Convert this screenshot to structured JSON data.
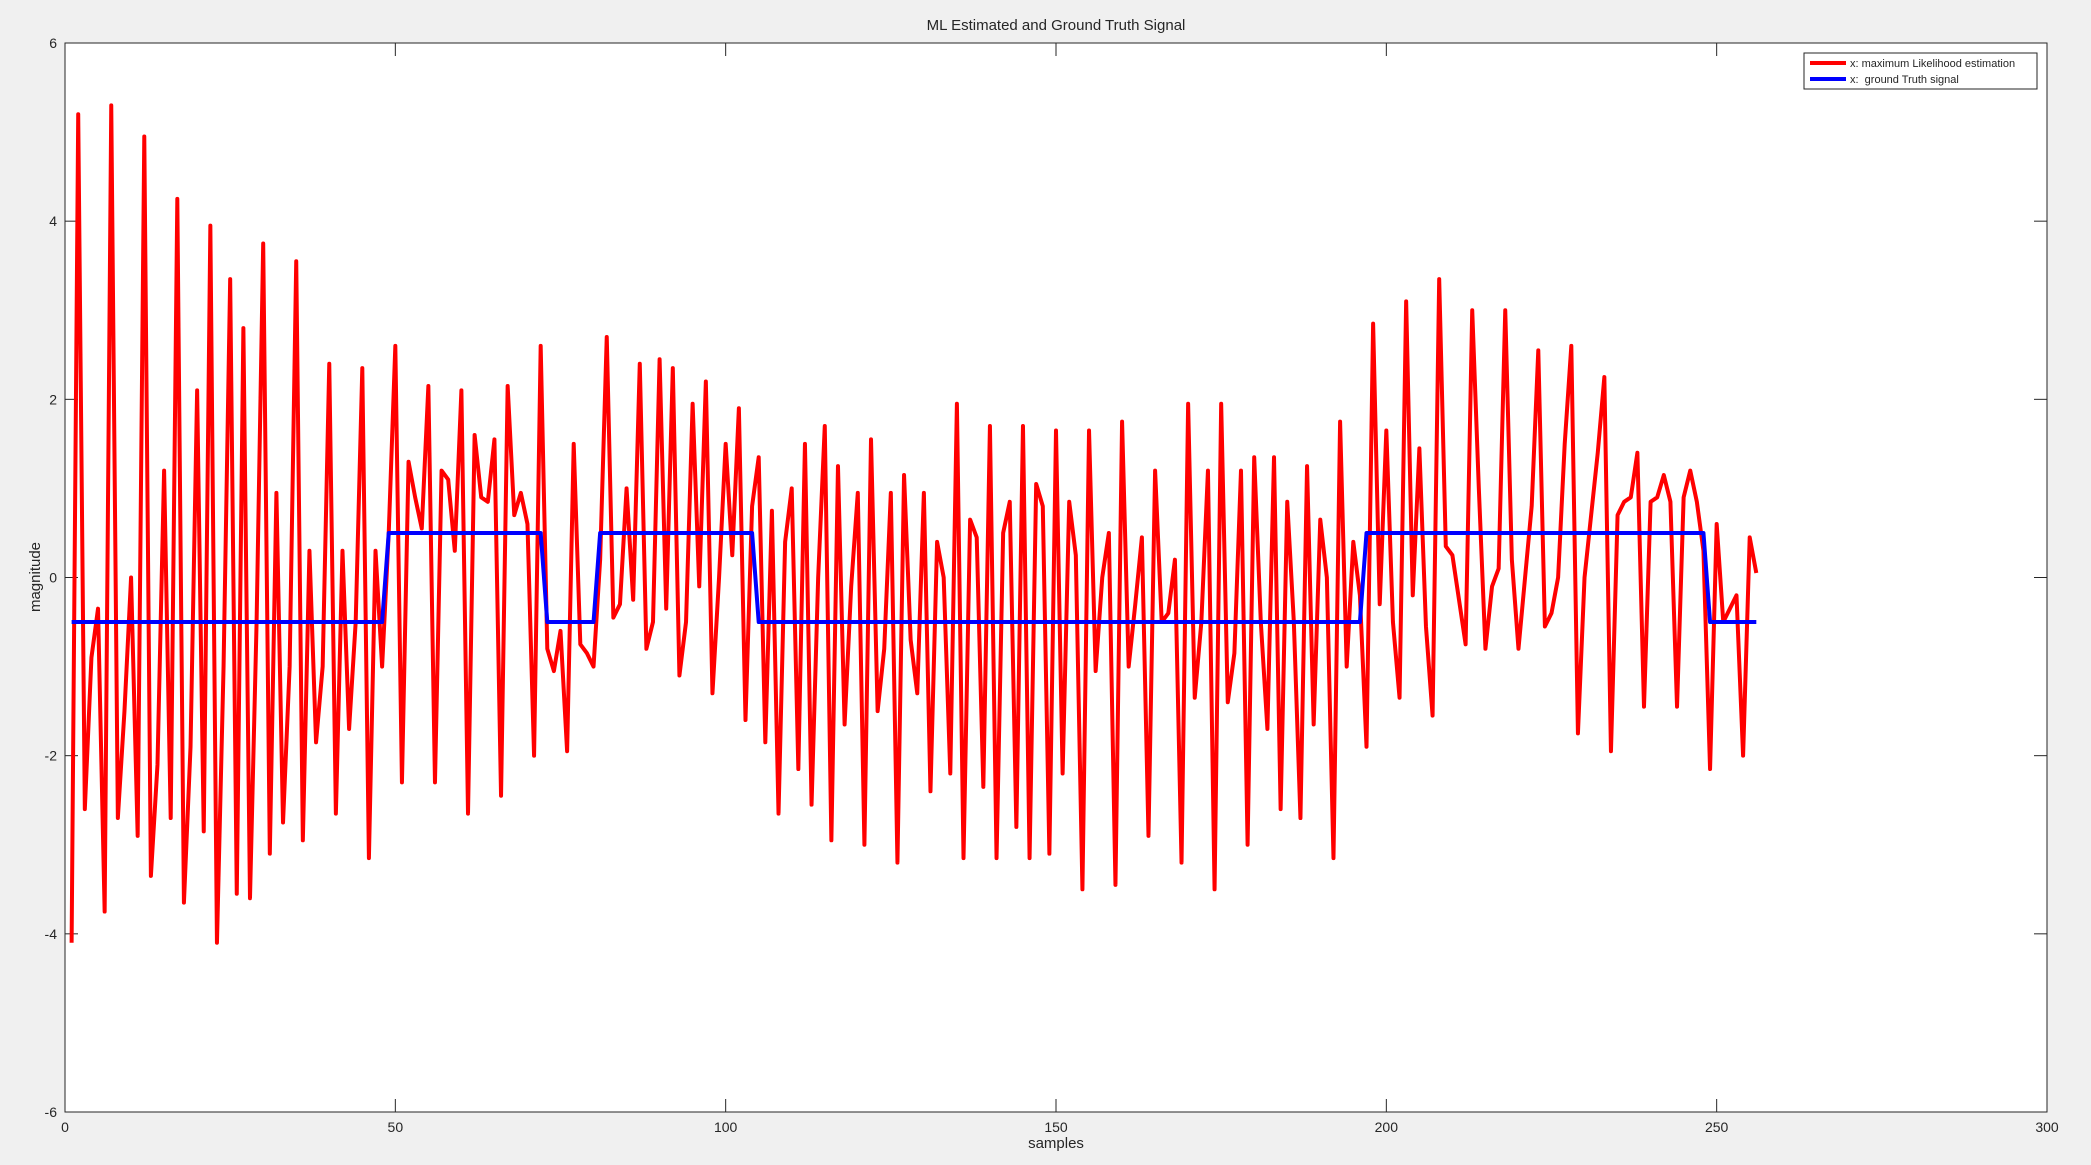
{
  "chart_data": {
    "type": "line",
    "title": "ML Estimated and Ground Truth Signal",
    "x_label": "samples",
    "y_label": "magnitude",
    "x": [
      1,
      2,
      3,
      4,
      5,
      6,
      7,
      8,
      9,
      10,
      11,
      12,
      13,
      14,
      15,
      16,
      17,
      18,
      19,
      20,
      21,
      22,
      23,
      24,
      25,
      26,
      27,
      28,
      29,
      30,
      31,
      32,
      33,
      34,
      35,
      36,
      37,
      38,
      39,
      40,
      41,
      42,
      43,
      44,
      45,
      46,
      47,
      48,
      49,
      50,
      51,
      52,
      53,
      54,
      55,
      56,
      57,
      58,
      59,
      60,
      61,
      62,
      63,
      64,
      65,
      66,
      67,
      68,
      69,
      70,
      71,
      72,
      73,
      74,
      75,
      76,
      77,
      78,
      79,
      80,
      81,
      82,
      83,
      84,
      85,
      86,
      87,
      88,
      89,
      90,
      91,
      92,
      93,
      94,
      95,
      96,
      97,
      98,
      99,
      100,
      101,
      102,
      103,
      104,
      105,
      106,
      107,
      108,
      109,
      110,
      111,
      112,
      113,
      114,
      115,
      116,
      117,
      118,
      119,
      120,
      121,
      122,
      123,
      124,
      125,
      126,
      127,
      128,
      129,
      130,
      131,
      132,
      133,
      134,
      135,
      136,
      137,
      138,
      139,
      140,
      141,
      142,
      143,
      144,
      145,
      146,
      147,
      148,
      149,
      150,
      151,
      152,
      153,
      154,
      155,
      156,
      157,
      158,
      159,
      160,
      161,
      162,
      163,
      164,
      165,
      166,
      167,
      168,
      169,
      170,
      171,
      172,
      173,
      174,
      175,
      176,
      177,
      178,
      179,
      180,
      181,
      182,
      183,
      184,
      185,
      186,
      187,
      188,
      189,
      190,
      191,
      192,
      193,
      194,
      195,
      196,
      197,
      198,
      199,
      200,
      201,
      202,
      203,
      204,
      205,
      206,
      207,
      208,
      209,
      210,
      211,
      212,
      213,
      214,
      215,
      216,
      217,
      218,
      219,
      220,
      221,
      222,
      223,
      224,
      225,
      226,
      227,
      228,
      229,
      230,
      231,
      232,
      233,
      234,
      235,
      236,
      237,
      238,
      239,
      240,
      241,
      242,
      243,
      244,
      245,
      246,
      247,
      248,
      249,
      250,
      251,
      252,
      253,
      254,
      255,
      256
    ],
    "series": [
      {
        "name": "x: maximum Likelihood estimation",
        "color": "#ff0000",
        "values": [
          -4.1,
          5.2,
          -2.6,
          -0.9,
          -0.35,
          -3.75,
          5.3,
          -2.7,
          -1.5,
          0,
          -2.9,
          4.95,
          -3.35,
          -2.1,
          1.2,
          -2.7,
          4.25,
          -3.65,
          -1.9,
          2.1,
          -2.85,
          3.95,
          -4.1,
          -1,
          3.35,
          -3.55,
          2.8,
          -3.6,
          -0.5,
          3.75,
          -3.1,
          0.95,
          -2.75,
          -1,
          3.55,
          -2.95,
          0.3,
          -1.85,
          -1,
          2.4,
          -2.65,
          0.3,
          -1.7,
          -0.5,
          2.35,
          -3.15,
          0.3,
          -1,
          0.5,
          2.6,
          -2.3,
          1.3,
          0.9,
          0.55,
          2.15,
          -2.3,
          1.2,
          1.1,
          0.3,
          2.1,
          -2.65,
          1.6,
          0.9,
          0.85,
          1.55,
          -2.45,
          2.15,
          0.7,
          0.95,
          0.6,
          -2,
          2.6,
          -0.8,
          -1.05,
          -0.6,
          -1.95,
          1.5,
          -0.75,
          -0.85,
          -1,
          0.2,
          2.7,
          -0.45,
          -0.3,
          1,
          -0.25,
          2.4,
          -0.8,
          -0.5,
          2.45,
          -0.35,
          2.35,
          -1.1,
          -0.5,
          1.95,
          -0.1,
          2.2,
          -1.3,
          0,
          1.5,
          0.25,
          1.9,
          -1.6,
          0.8,
          1.35,
          -1.85,
          0.75,
          -2.65,
          0.4,
          1,
          -2.15,
          1.5,
          -2.55,
          0,
          1.7,
          -2.95,
          1.25,
          -1.65,
          -0.1,
          0.95,
          -3,
          1.55,
          -1.5,
          -0.8,
          0.95,
          -3.2,
          1.15,
          -0.7,
          -1.3,
          0.95,
          -2.4,
          0.4,
          0,
          -2.2,
          1.95,
          -3.15,
          0.65,
          0.45,
          -2.35,
          1.7,
          -3.15,
          0.5,
          0.85,
          -2.8,
          1.7,
          -3.15,
          1.05,
          0.8,
          -3.1,
          1.65,
          -2.2,
          0.85,
          0.25,
          -3.5,
          1.65,
          -1.05,
          0,
          0.5,
          -3.45,
          1.75,
          -1,
          -0.3,
          0.45,
          -2.9,
          1.2,
          -0.5,
          -0.4,
          0.2,
          -3.2,
          1.95,
          -1.35,
          -0.5,
          1.2,
          -3.5,
          1.95,
          -1.4,
          -0.85,
          1.2,
          -3,
          1.35,
          -0.5,
          -1.7,
          1.35,
          -2.6,
          0.85,
          -0.5,
          -2.7,
          1.25,
          -1.65,
          0.65,
          0,
          -3.15,
          1.75,
          -1,
          0.4,
          -0.2,
          -1.9,
          2.85,
          -0.3,
          1.65,
          -0.5,
          -1.35,
          3.1,
          -0.2,
          1.45,
          -0.55,
          -1.55,
          3.35,
          0.35,
          0.25,
          -0.25,
          -0.75,
          3,
          1,
          -0.8,
          -0.1,
          0.1,
          3,
          0.2,
          -0.8,
          0,
          0.8,
          2.55,
          -0.55,
          -0.4,
          0,
          1.5,
          2.6,
          -1.75,
          0,
          0.7,
          1.4,
          2.25,
          -1.95,
          0.7,
          0.85,
          0.9,
          1.4,
          -1.45,
          0.85,
          0.9,
          1.15,
          0.85,
          -1.45,
          0.9,
          1.2,
          0.85,
          0.3,
          -2.15,
          0.6,
          -0.5,
          -0.35,
          -0.2,
          -2,
          0.45,
          0.05
        ]
      },
      {
        "name": "x:  ground Truth signal",
        "color": "#0000ff",
        "values": [
          -0.5,
          -0.5,
          -0.5,
          -0.5,
          -0.5,
          -0.5,
          -0.5,
          -0.5,
          -0.5,
          -0.5,
          -0.5,
          -0.5,
          -0.5,
          -0.5,
          -0.5,
          -0.5,
          -0.5,
          -0.5,
          -0.5,
          -0.5,
          -0.5,
          -0.5,
          -0.5,
          -0.5,
          -0.5,
          -0.5,
          -0.5,
          -0.5,
          -0.5,
          -0.5,
          -0.5,
          -0.5,
          -0.5,
          -0.5,
          -0.5,
          -0.5,
          -0.5,
          -0.5,
          -0.5,
          -0.5,
          -0.5,
          -0.5,
          -0.5,
          -0.5,
          -0.5,
          -0.5,
          -0.5,
          -0.5,
          0.5,
          0.5,
          0.5,
          0.5,
          0.5,
          0.5,
          0.5,
          0.5,
          0.5,
          0.5,
          0.5,
          0.5,
          0.5,
          0.5,
          0.5,
          0.5,
          0.5,
          0.5,
          0.5,
          0.5,
          0.5,
          0.5,
          0.5,
          0.5,
          -0.5,
          -0.5,
          -0.5,
          -0.5,
          -0.5,
          -0.5,
          -0.5,
          -0.5,
          0.5,
          0.5,
          0.5,
          0.5,
          0.5,
          0.5,
          0.5,
          0.5,
          0.5,
          0.5,
          0.5,
          0.5,
          0.5,
          0.5,
          0.5,
          0.5,
          0.5,
          0.5,
          0.5,
          0.5,
          0.5,
          0.5,
          0.5,
          0.5,
          -0.5,
          -0.5,
          -0.5,
          -0.5,
          -0.5,
          -0.5,
          -0.5,
          -0.5,
          -0.5,
          -0.5,
          -0.5,
          -0.5,
          -0.5,
          -0.5,
          -0.5,
          -0.5,
          -0.5,
          -0.5,
          -0.5,
          -0.5,
          -0.5,
          -0.5,
          -0.5,
          -0.5,
          -0.5,
          -0.5,
          -0.5,
          -0.5,
          -0.5,
          -0.5,
          -0.5,
          -0.5,
          -0.5,
          -0.5,
          -0.5,
          -0.5,
          -0.5,
          -0.5,
          -0.5,
          -0.5,
          -0.5,
          -0.5,
          -0.5,
          -0.5,
          -0.5,
          -0.5,
          -0.5,
          -0.5,
          -0.5,
          -0.5,
          -0.5,
          -0.5,
          -0.5,
          -0.5,
          -0.5,
          -0.5,
          -0.5,
          -0.5,
          -0.5,
          -0.5,
          -0.5,
          -0.5,
          -0.5,
          -0.5,
          -0.5,
          -0.5,
          -0.5,
          -0.5,
          -0.5,
          -0.5,
          -0.5,
          -0.5,
          -0.5,
          -0.5,
          -0.5,
          -0.5,
          -0.5,
          -0.5,
          -0.5,
          -0.5,
          -0.5,
          -0.5,
          -0.5,
          -0.5,
          -0.5,
          -0.5,
          -0.5,
          -0.5,
          -0.5,
          -0.5,
          -0.5,
          -0.5,
          0.5,
          0.5,
          0.5,
          0.5,
          0.5,
          0.5,
          0.5,
          0.5,
          0.5,
          0.5,
          0.5,
          0.5,
          0.5,
          0.5,
          0.5,
          0.5,
          0.5,
          0.5,
          0.5,
          0.5,
          0.5,
          0.5,
          0.5,
          0.5,
          0.5,
          0.5,
          0.5,
          0.5,
          0.5,
          0.5,
          0.5,
          0.5,
          0.5,
          0.5,
          0.5,
          0.5,
          0.5,
          0.5,
          0.5,
          0.5,
          0.5,
          0.5,
          0.5,
          0.5,
          0.5,
          0.5,
          0.5,
          0.5,
          0.5,
          0.5,
          0.5,
          0.5,
          -0.5,
          -0.5,
          -0.5,
          -0.5,
          -0.5,
          -0.5,
          -0.5,
          -0.5
        ]
      }
    ],
    "xlim": [
      0,
      300
    ],
    "xticks": [
      0,
      50,
      100,
      150,
      200,
      250,
      300
    ],
    "ylim": [
      -6,
      6
    ],
    "yticks": [
      -6,
      -4,
      -2,
      0,
      2,
      4,
      6
    ],
    "grid": false,
    "legend": "northeast"
  }
}
